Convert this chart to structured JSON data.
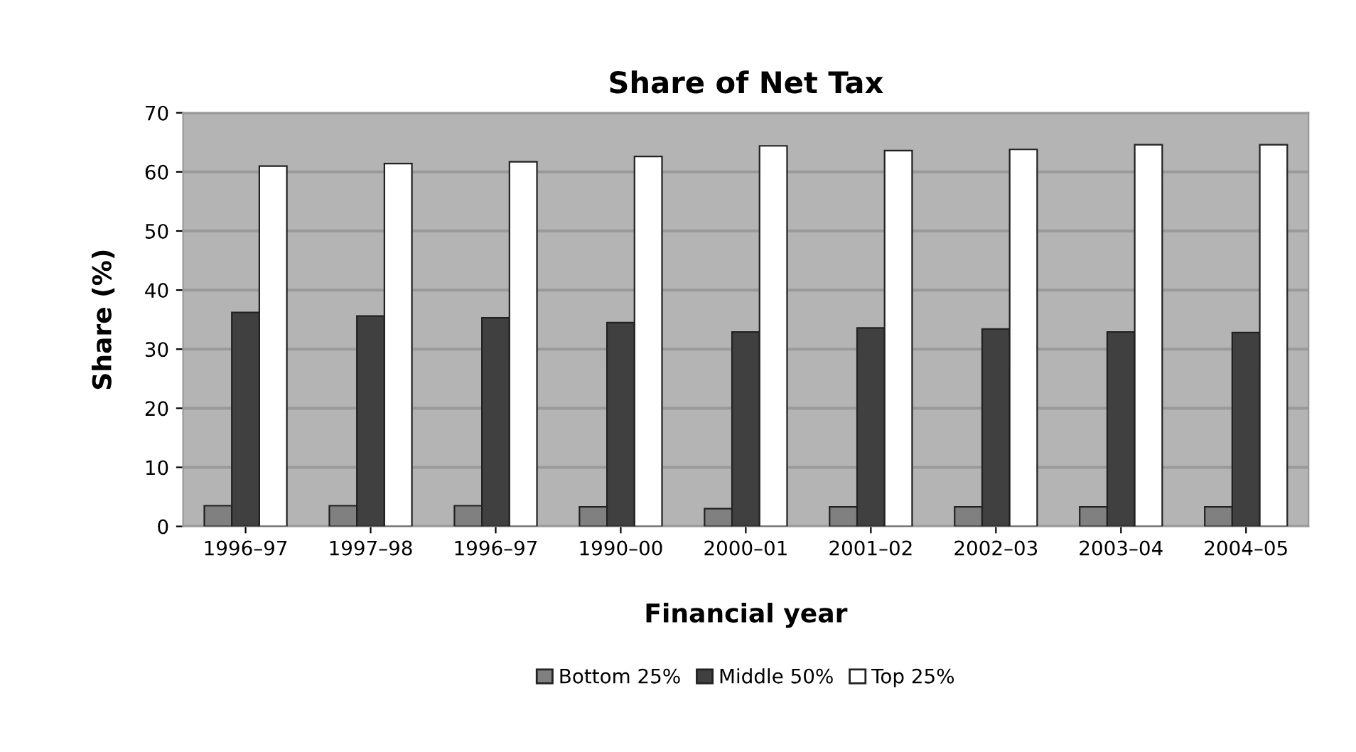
{
  "chart_data": {
    "type": "bar",
    "title": "Share of Net Tax",
    "xlabel": "Financial year",
    "ylabel": "Share (%)",
    "categories": [
      "1996–97",
      "1997–98",
      "1996–97",
      "1990–00",
      "2000–01",
      "2001–02",
      "2002–03",
      "2003–04",
      "2004–05"
    ],
    "series": [
      {
        "name": "Bottom 25%",
        "color": "#808080",
        "values": [
          3.5,
          3.5,
          3.5,
          3.3,
          3.0,
          3.3,
          3.3,
          3.3,
          3.3
        ]
      },
      {
        "name": "Middle 50%",
        "color": "#404040",
        "values": [
          36.2,
          35.6,
          35.3,
          34.5,
          32.9,
          33.6,
          33.4,
          32.9,
          32.8
        ]
      },
      {
        "name": "Top 25%",
        "color": "#ffffff",
        "values": [
          61.0,
          61.4,
          61.7,
          62.6,
          64.4,
          63.6,
          63.8,
          64.6,
          64.6
        ]
      }
    ],
    "ylim": [
      0,
      70
    ],
    "yticks": [
      0,
      10,
      20,
      30,
      40,
      50,
      60,
      70
    ],
    "grid": "y",
    "legend": "bottom"
  }
}
